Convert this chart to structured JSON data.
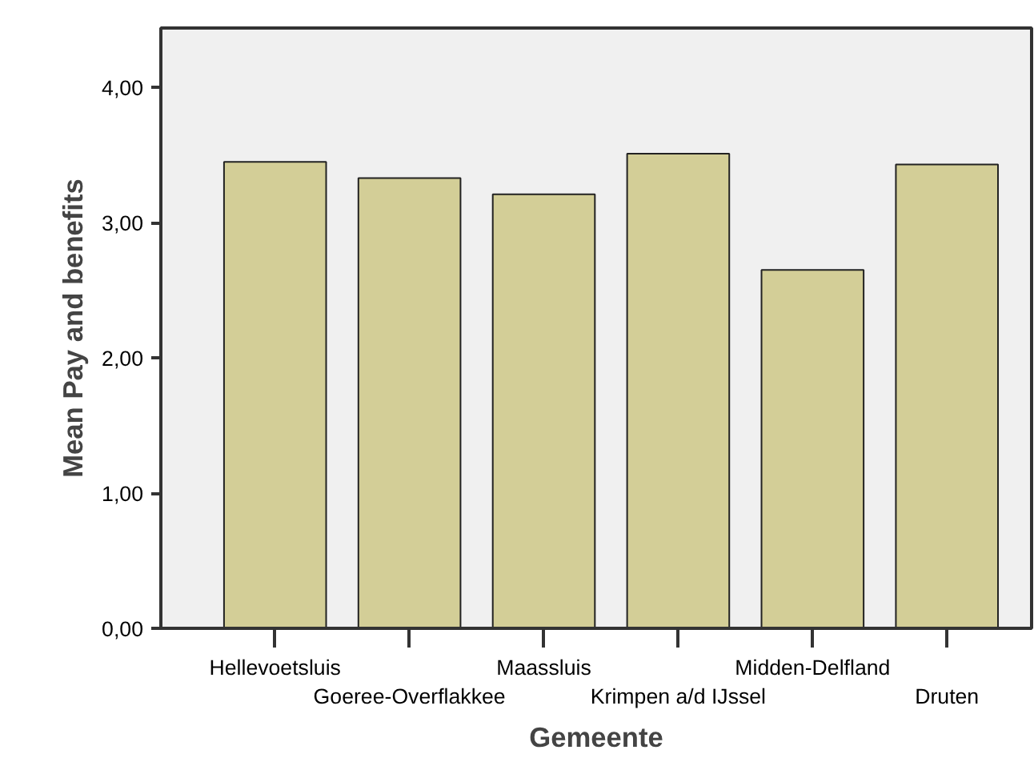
{
  "chart_data": {
    "type": "bar",
    "xlabel": "Gemeente",
    "ylabel": "Mean Pay and benefits",
    "categories": [
      "Hellevoetsluis",
      "Goeree-Overflakkee",
      "Maassluis",
      "Krimpen a/d IJssel",
      "Midden-Delfland",
      "Druten"
    ],
    "values": [
      3.45,
      3.33,
      3.21,
      3.51,
      2.65,
      3.43
    ],
    "color": "#d3ce97",
    "ylim": [
      0,
      4.44
    ],
    "yticks": [
      {
        "value": 0,
        "label": "0,00"
      },
      {
        "value": 1,
        "label": "1,00"
      },
      {
        "value": 2,
        "label": "2,00"
      },
      {
        "value": 3,
        "label": "3,00"
      },
      {
        "value": 4,
        "label": "4,00"
      }
    ],
    "grid": false
  }
}
